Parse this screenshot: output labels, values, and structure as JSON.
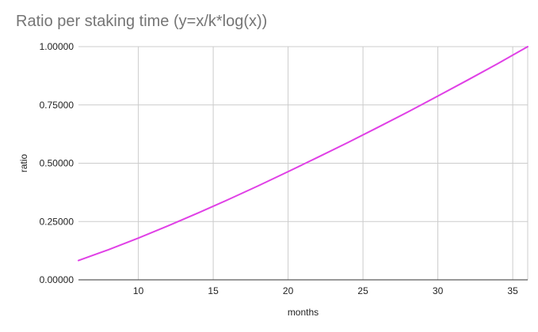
{
  "chart_data": {
    "type": "line",
    "title": "Ratio per staking time (y=x/k*log(x))",
    "xlabel": "months",
    "ylabel": "ratio",
    "xlim": [
      6,
      36
    ],
    "ylim": [
      0,
      1
    ],
    "x_ticks": [
      10,
      15,
      20,
      25,
      30,
      35
    ],
    "y_ticks": [
      0,
      0.25,
      0.5,
      0.75,
      1
    ],
    "x_tick_labels": [
      "10",
      "15",
      "20",
      "25",
      "30",
      "35"
    ],
    "y_tick_labels": [
      "0.00000",
      "0.25000",
      "0.50000",
      "0.75000",
      "1.00000"
    ],
    "grid": true,
    "legend": "none",
    "series": [
      {
        "color": "#e040e6",
        "x": [
          6,
          8,
          10,
          12,
          14,
          16,
          18,
          20,
          22,
          24,
          26,
          28,
          30,
          32,
          34,
          36
        ],
        "y": [
          0.083,
          0.129,
          0.179,
          0.232,
          0.287,
          0.344,
          0.403,
          0.464,
          0.526,
          0.589,
          0.654,
          0.72,
          0.788,
          0.857,
          0.927,
          1.0
        ]
      }
    ]
  }
}
